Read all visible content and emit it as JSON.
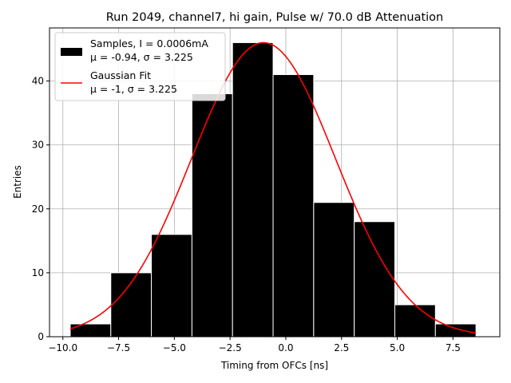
{
  "chart_data": {
    "type": "bar",
    "title": "Run 2049, channel7, hi gain, Pulse w/ 70.0 dB Attenuation",
    "xlabel": "Timing from OFCs [ns]",
    "ylabel": "Entries",
    "xlim": [
      -10.6,
      9.6
    ],
    "ylim": [
      0,
      48.3
    ],
    "xticks": [
      -10.0,
      -7.5,
      -5.0,
      -2.5,
      0.0,
      2.5,
      5.0,
      7.5
    ],
    "xtick_labels": [
      "−10.0",
      "−7.5",
      "−5.0",
      "−2.5",
      "0.0",
      "2.5",
      "5.0",
      "7.5"
    ],
    "yticks": [
      0,
      10,
      20,
      30,
      40
    ],
    "ytick_labels": [
      "0",
      "10",
      "20",
      "30",
      "40"
    ],
    "grid": true,
    "legend_position": "upper-left",
    "bins": [
      {
        "x0": -9.67,
        "x1": -7.85,
        "value": 2
      },
      {
        "x0": -7.85,
        "x1": -6.03,
        "value": 10
      },
      {
        "x0": -6.03,
        "x1": -4.21,
        "value": 16
      },
      {
        "x0": -4.21,
        "x1": -2.39,
        "value": 38
      },
      {
        "x0": -2.39,
        "x1": -0.57,
        "value": 46
      },
      {
        "x0": -0.57,
        "x1": 1.25,
        "value": 41
      },
      {
        "x0": 1.25,
        "x1": 3.07,
        "value": 21
      },
      {
        "x0": 3.07,
        "x1": 4.89,
        "value": 18
      },
      {
        "x0": 4.89,
        "x1": 6.71,
        "value": 5
      },
      {
        "x0": 6.71,
        "x1": 8.53,
        "value": 2
      }
    ],
    "series": [
      {
        "name": "Samples, I = 0.0006mA",
        "stats": "μ = -0.94, σ = 3.225",
        "kind": "histogram",
        "color": "#000000",
        "edge_color": "#ffffff"
      },
      {
        "name": "Gaussian Fit",
        "stats": "μ = -1, σ = 3.225",
        "kind": "curve",
        "color": "#ff0000",
        "mu": -1,
        "sigma": 3.225,
        "amplitude": 46,
        "x_range": [
          -9.67,
          8.53
        ]
      }
    ]
  }
}
